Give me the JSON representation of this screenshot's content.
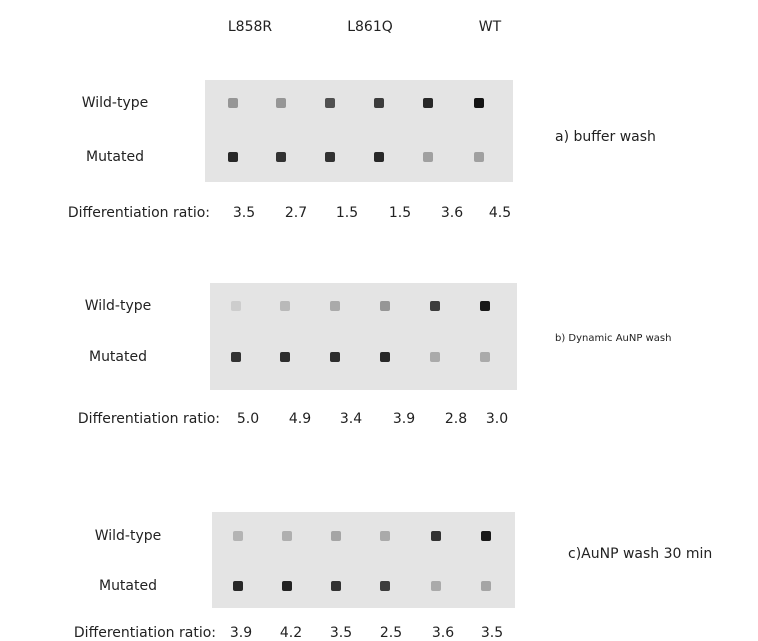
{
  "column_headers": [
    "L858R",
    "L861Q",
    "WT"
  ],
  "panels": [
    {
      "row_labels": [
        "Wild-type",
        "Mutated"
      ],
      "caption": "a) buffer wash",
      "ratio_label": "Differentiation ratio:",
      "ratios": [
        "3.5",
        "2.7",
        "1.5",
        "1.5",
        "3.6",
        "4.5"
      ]
    },
    {
      "row_labels": [
        "Wild-type",
        "Mutated"
      ],
      "caption": "b) Dynamic AuNP wash",
      "ratio_label": "Differentiation ratio:",
      "ratios": [
        "5.0",
        "4.9",
        "3.4",
        "3.9",
        "2.8",
        "3.0"
      ]
    },
    {
      "row_labels": [
        "Wild-type",
        "Mutated"
      ],
      "caption": "c)AuNP wash 30 min",
      "ratio_label": "Differentiation ratio:",
      "ratios": [
        "3.9",
        "4.2",
        "3.5",
        "2.5",
        "3.6",
        "3.5"
      ]
    }
  ]
}
